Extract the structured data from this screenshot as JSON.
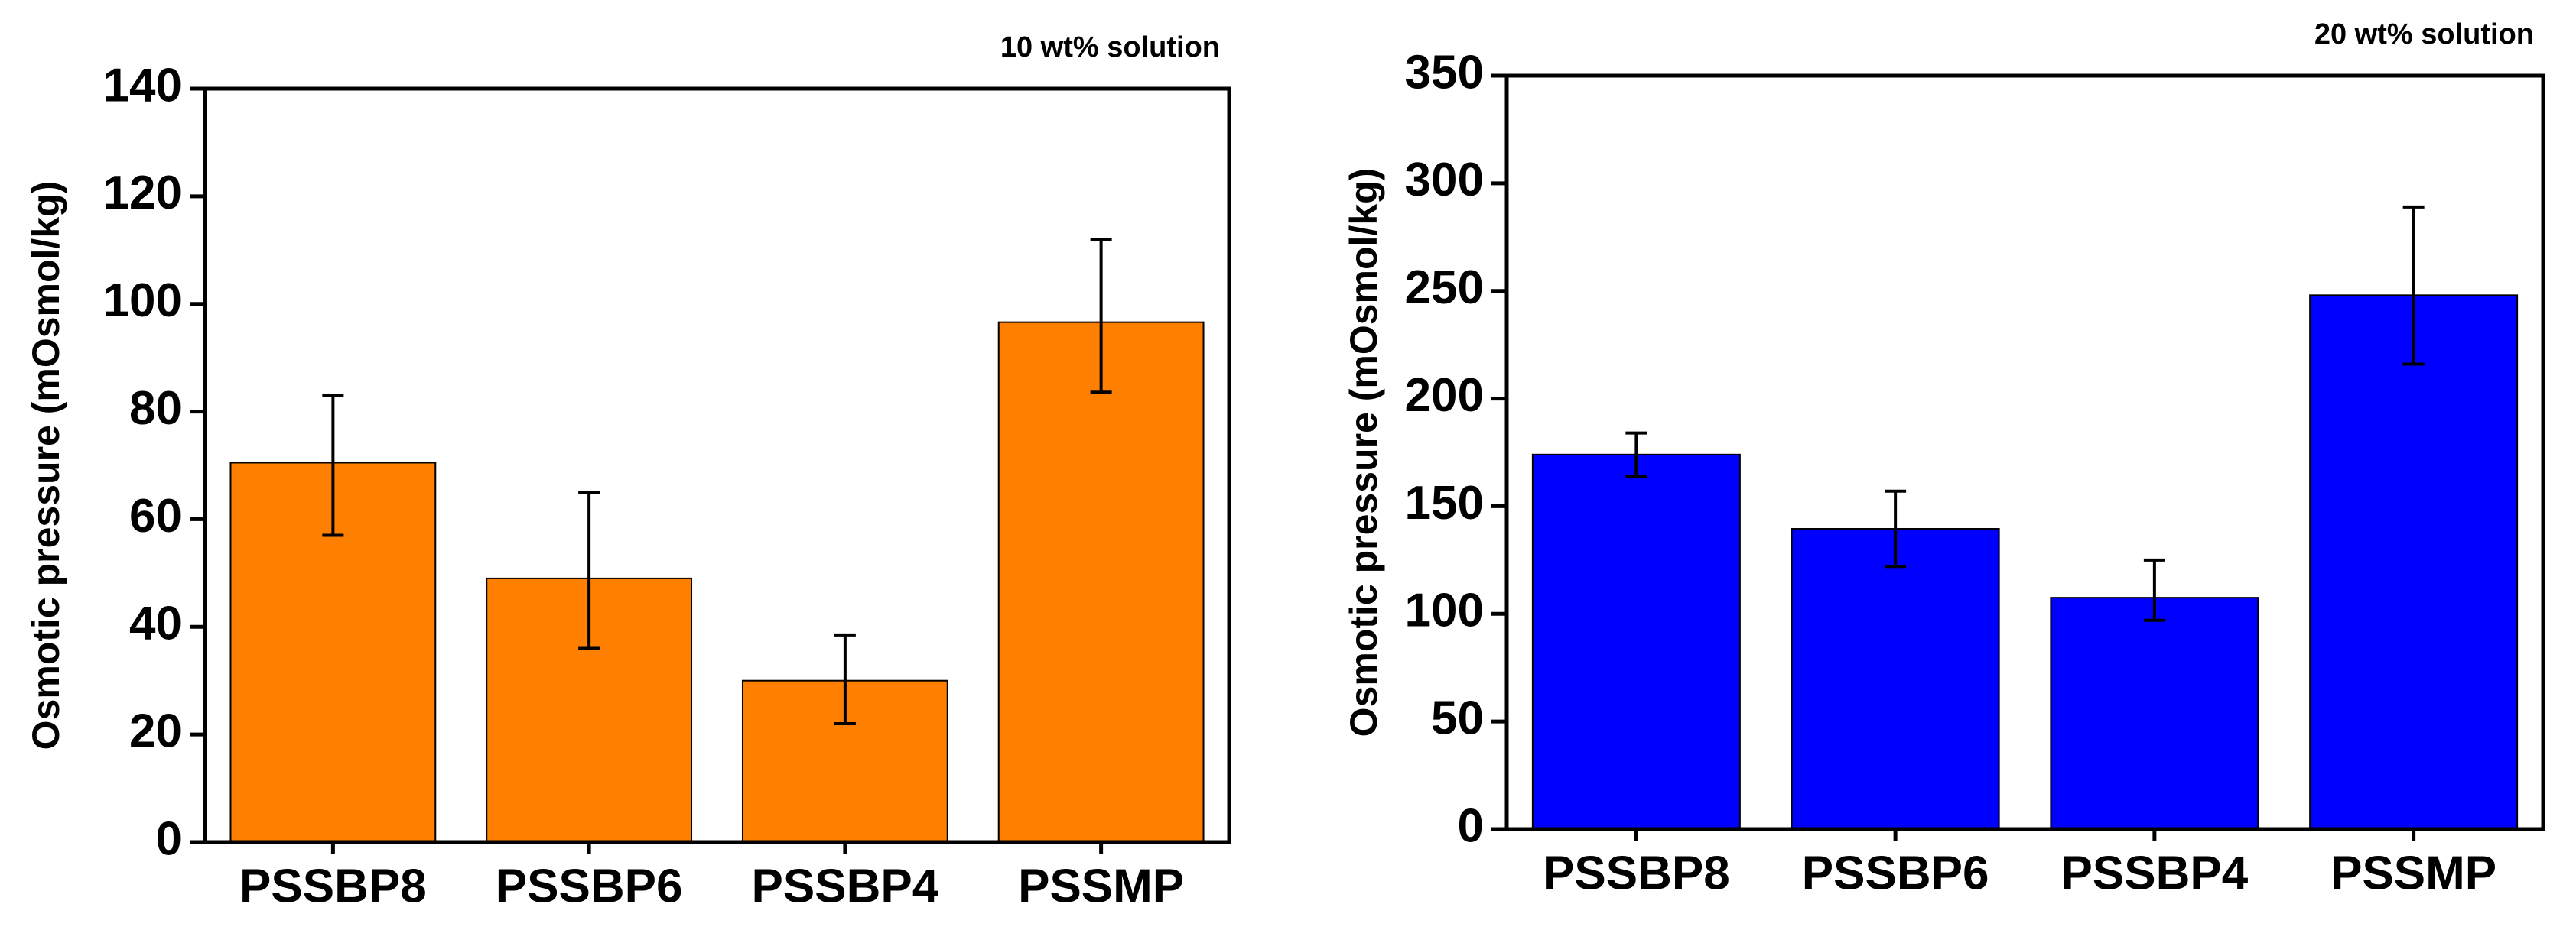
{
  "chart_data": [
    {
      "type": "bar",
      "annotation": "10 wt% solution",
      "ylabel": "Osmotic pressure (mOsmol/kg)",
      "categories": [
        "PSSBP8",
        "PSSBP6",
        "PSSBP4",
        "PSSMP"
      ],
      "values": [
        70.5,
        49,
        30,
        96.6
      ],
      "errors_minus": [
        13.5,
        13,
        8,
        13
      ],
      "errors_plus": [
        12.5,
        16,
        8.5,
        15.3
      ],
      "color": "#ff8000",
      "ylim": [
        0,
        140
      ],
      "yticks": [
        0,
        20,
        40,
        60,
        80,
        100,
        120,
        140
      ]
    },
    {
      "type": "bar",
      "annotation": "20 wt% solution",
      "ylabel": "Osmotic pressure (mOsmol/kg)",
      "categories": [
        "PSSBP8",
        "PSSBP6",
        "PSSBP4",
        "PSSMP"
      ],
      "values": [
        174,
        139.5,
        107.5,
        248
      ],
      "errors_minus": [
        10,
        17.5,
        10.5,
        32
      ],
      "errors_plus": [
        10,
        17.5,
        17.5,
        41
      ],
      "color": "#0000ff",
      "ylim": [
        0,
        350
      ],
      "yticks": [
        0,
        50,
        100,
        150,
        200,
        250,
        300,
        350
      ]
    }
  ]
}
